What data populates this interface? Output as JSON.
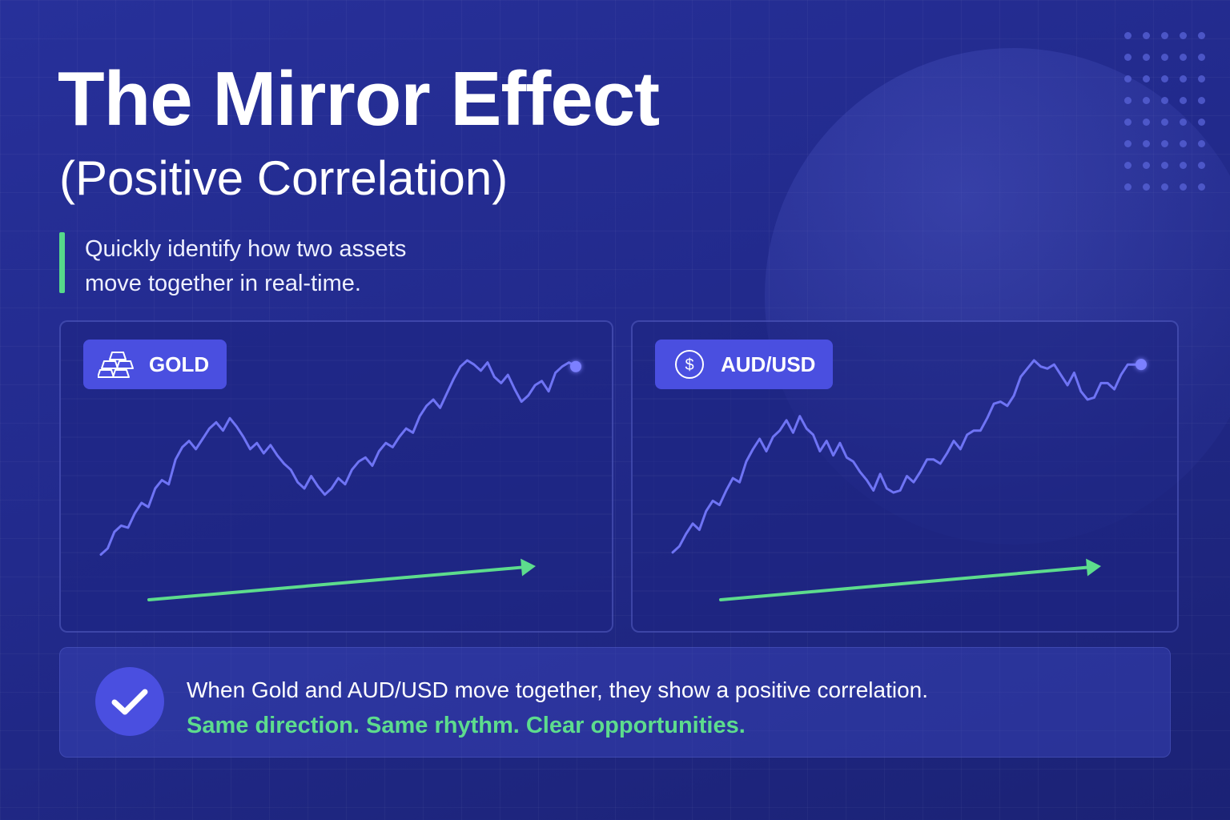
{
  "header": {
    "title": "The Mirror Effect",
    "subtitle": "(Positive Correlation)",
    "intro_line1": "Quickly identify how two assets",
    "intro_line2": "move together in real-time."
  },
  "colors": {
    "background": "#232b90",
    "line": "#6f74f5",
    "trend_arrow": "#5ddc8d",
    "badge": "#4a4fe0",
    "accent": "#56d98a"
  },
  "panels": [
    {
      "label": "GOLD",
      "icon": "gold-bars-icon"
    },
    {
      "label": "AUD/USD",
      "icon": "dollar-coin-icon"
    }
  ],
  "chart_data": [
    {
      "type": "line",
      "title": "GOLD",
      "xlabel": "",
      "ylabel": "",
      "axes_printed": false,
      "grid": true,
      "ylim": [
        0,
        100
      ],
      "x": [
        0,
        1,
        2,
        3,
        4,
        5,
        6,
        7,
        8,
        9,
        10,
        11,
        12,
        13,
        14,
        15,
        16,
        17,
        18,
        19,
        20,
        21,
        22,
        23,
        24,
        25,
        26,
        27,
        28,
        29,
        30,
        31,
        32,
        33,
        34,
        35,
        36,
        37,
        38,
        39,
        40,
        41,
        42,
        43,
        44,
        45,
        46,
        47,
        48,
        49,
        50,
        51,
        52,
        53,
        54,
        55,
        56,
        57,
        58,
        59,
        60,
        61,
        62,
        63,
        64,
        65,
        66,
        67,
        68,
        69,
        70
      ],
      "values": [
        6,
        9,
        17,
        20,
        19,
        26,
        31,
        29,
        38,
        42,
        40,
        52,
        58,
        61,
        57,
        62,
        67,
        70,
        66,
        72,
        68,
        63,
        57,
        60,
        55,
        59,
        54,
        50,
        47,
        41,
        38,
        44,
        39,
        35,
        38,
        43,
        40,
        47,
        51,
        53,
        49,
        56,
        60,
        58,
        63,
        67,
        65,
        73,
        78,
        81,
        77,
        84,
        91,
        97,
        100,
        98,
        95,
        99,
        92,
        89,
        93,
        86,
        80,
        83,
        88,
        90,
        85,
        94,
        97,
        99,
        97
      ],
      "series": [
        {
          "values_ref": "values"
        }
      ],
      "trend_arrow": "up"
    },
    {
      "type": "line",
      "title": "AUD/USD",
      "xlabel": "",
      "ylabel": "",
      "axes_printed": false,
      "grid": true,
      "ylim": [
        0,
        100
      ],
      "x": [
        0,
        1,
        2,
        3,
        4,
        5,
        6,
        7,
        8,
        9,
        10,
        11,
        12,
        13,
        14,
        15,
        16,
        17,
        18,
        19,
        20,
        21,
        22,
        23,
        24,
        25,
        26,
        27,
        28,
        29,
        30,
        31,
        32,
        33,
        34,
        35,
        36,
        37,
        38,
        39,
        40,
        41,
        42,
        43,
        44,
        45,
        46,
        47,
        48,
        49,
        50,
        51,
        52,
        53,
        54,
        55,
        56,
        57,
        58,
        59,
        60,
        61,
        62,
        63,
        64,
        65,
        66,
        67,
        68,
        69,
        70
      ],
      "values": [
        7,
        10,
        16,
        21,
        18,
        27,
        32,
        30,
        37,
        43,
        41,
        51,
        57,
        62,
        56,
        63,
        66,
        71,
        65,
        73,
        67,
        64,
        56,
        61,
        54,
        60,
        53,
        51,
        46,
        42,
        37,
        45,
        38,
        36,
        37,
        44,
        41,
        46,
        52,
        52,
        50,
        55,
        61,
        57,
        64,
        66,
        66,
        72,
        79,
        80,
        78,
        83,
        92,
        96,
        100,
        97,
        96,
        98,
        93,
        88,
        94,
        85,
        81,
        82,
        89,
        89,
        86,
        93,
        98,
        98,
        98
      ],
      "series": [
        {
          "values_ref": "values"
        }
      ],
      "trend_arrow": "up"
    }
  ],
  "callout": {
    "line1": "When Gold and AUD/USD move together, they show a positive correlation.",
    "line2": "Same direction. Same rhythm. Clear opportunities.",
    "icon": "check-icon"
  }
}
